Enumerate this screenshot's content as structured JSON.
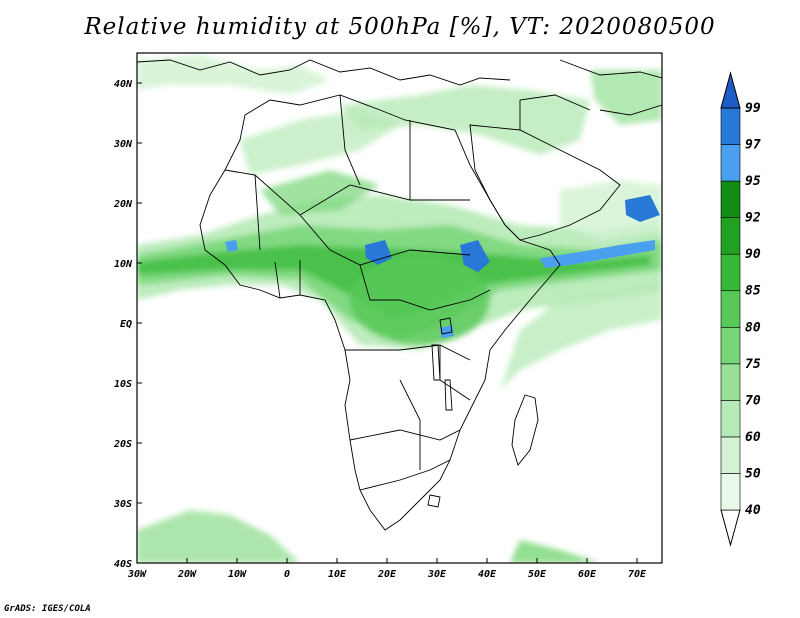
{
  "title": "Relative humidity at 500hPa [%], VT: 2020080500",
  "credit": "GrADS: IGES/COLA",
  "map": {
    "lon_range": [
      -30,
      75
    ],
    "lat_range": [
      -40,
      45
    ],
    "lon_ticks": [
      "30W",
      "20W",
      "10W",
      "0",
      "10E",
      "20E",
      "30E",
      "40E",
      "50E",
      "60E",
      "70E"
    ],
    "lat_ticks": [
      "40N",
      "30N",
      "20N",
      "10N",
      "EQ",
      "10S",
      "20S",
      "30S",
      "40S"
    ]
  },
  "colorbar": {
    "levels": [
      "40",
      "50",
      "60",
      "70",
      "75",
      "80",
      "85",
      "90",
      "92",
      "95",
      "97",
      "99"
    ],
    "colors": [
      "#ffffff",
      "#eaf8ea",
      "#d2f2d2",
      "#b6eab6",
      "#98e098",
      "#78d678",
      "#58c858",
      "#38b838",
      "#22a022",
      "#128c12",
      "#4aa0ee",
      "#2878d8",
      "#1e5cc8"
    ]
  }
}
